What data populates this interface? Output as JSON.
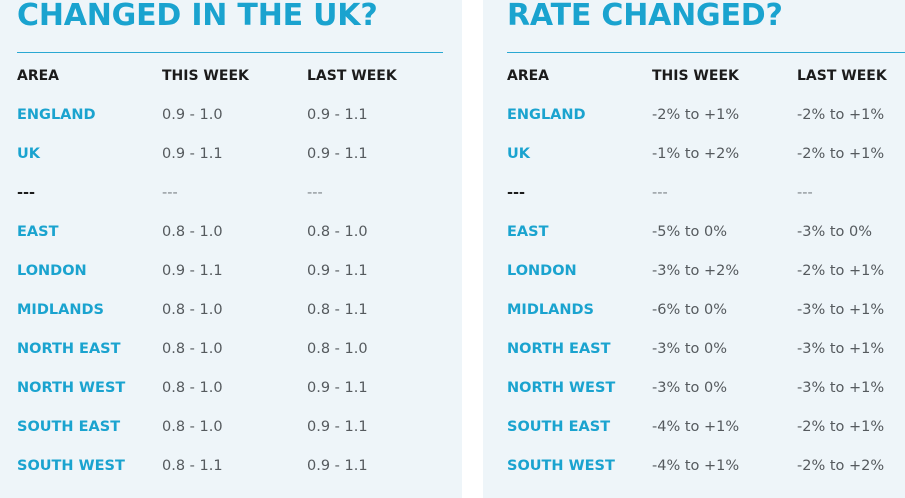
{
  "left": {
    "title": "CHANGED IN THE UK?",
    "headers": [
      "AREA",
      "THIS WEEK",
      "LAST WEEK"
    ],
    "rows": [
      {
        "area": "ENGLAND",
        "this_week": "0.9 - 1.0",
        "last_week": "0.9 - 1.1"
      },
      {
        "area": "UK",
        "this_week": "0.9 - 1.1",
        "last_week": "0.9 - 1.1"
      },
      {
        "area": "---",
        "this_week": "---",
        "last_week": "---"
      },
      {
        "area": "EAST",
        "this_week": "0.8 - 1.0",
        "last_week": "0.8 - 1.0"
      },
      {
        "area": "LONDON",
        "this_week": "0.9 - 1.1",
        "last_week": "0.9 - 1.1"
      },
      {
        "area": "MIDLANDS",
        "this_week": "0.8 - 1.0",
        "last_week": "0.8 - 1.1"
      },
      {
        "area": "NORTH EAST",
        "this_week": "0.8 - 1.0",
        "last_week": "0.8 - 1.0"
      },
      {
        "area": "NORTH WEST",
        "this_week": "0.8 - 1.0",
        "last_week": "0.9 - 1.1"
      },
      {
        "area": "SOUTH EAST",
        "this_week": "0.8 - 1.0",
        "last_week": "0.9 - 1.1"
      },
      {
        "area": "SOUTH WEST",
        "this_week": "0.8 - 1.1",
        "last_week": "0.9 - 1.1"
      }
    ]
  },
  "right": {
    "title": "RATE CHANGED?",
    "headers": [
      "AREA",
      "THIS WEEK",
      "LAST WEEK"
    ],
    "rows": [
      {
        "area": "ENGLAND",
        "this_week": "-2% to +1%",
        "last_week": "-2% to +1%"
      },
      {
        "area": "UK",
        "this_week": "-1% to +2%",
        "last_week": "-2% to +1%"
      },
      {
        "area": "---",
        "this_week": "---",
        "last_week": "---"
      },
      {
        "area": "EAST",
        "this_week": "-5% to 0%",
        "last_week": "-3% to 0%"
      },
      {
        "area": "LONDON",
        "this_week": "-3% to +2%",
        "last_week": "-2% to +1%"
      },
      {
        "area": "MIDLANDS",
        "this_week": "-6% to 0%",
        "last_week": "-3% to +1%"
      },
      {
        "area": "NORTH EAST",
        "this_week": "-3% to 0%",
        "last_week": "-3% to +1%"
      },
      {
        "area": "NORTH WEST",
        "this_week": "-3% to 0%",
        "last_week": "-3% to +1%"
      },
      {
        "area": "SOUTH EAST",
        "this_week": "-4% to +1%",
        "last_week": "-2% to +1%"
      },
      {
        "area": "SOUTH WEST",
        "this_week": "-4% to +1%",
        "last_week": "-2% to +2%"
      }
    ]
  },
  "colors": {
    "accent": "#1aa3cf",
    "panel_bg": "#eef5f9",
    "header_text": "#1b1b1b",
    "value_text": "#555a5e"
  }
}
